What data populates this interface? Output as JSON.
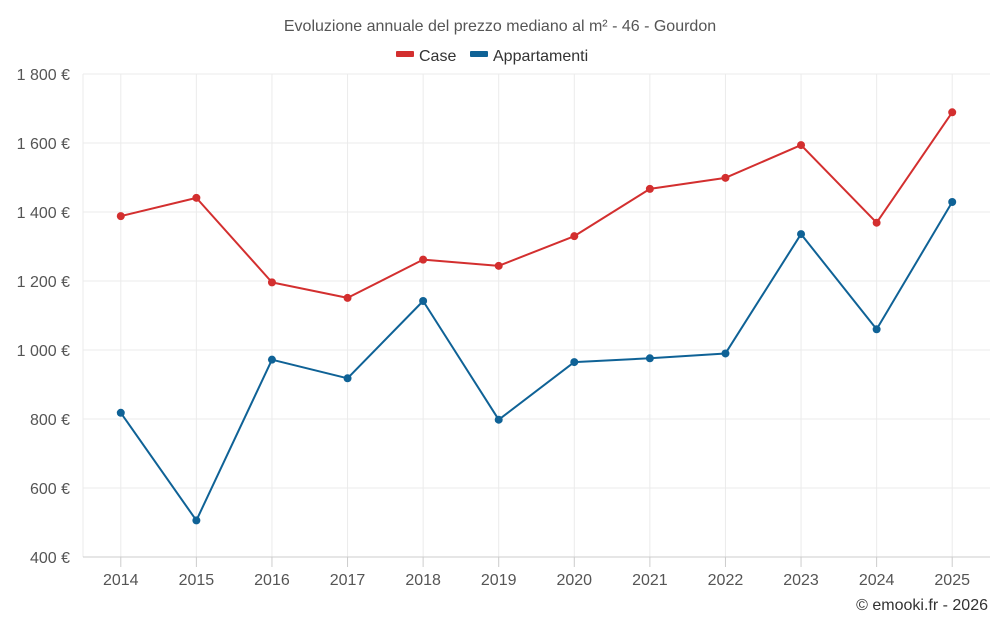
{
  "chart_data": {
    "type": "line",
    "title": "Evoluzione annuale del prezzo mediano al m² - 46 - Gourdon",
    "categories": [
      "2014",
      "2015",
      "2016",
      "2017",
      "2018",
      "2019",
      "2020",
      "2021",
      "2022",
      "2023",
      "2024",
      "2025"
    ],
    "series": [
      {
        "name": "Case",
        "color": "#d32f2f",
        "values": [
          1388,
          1441,
          1196,
          1151,
          1262,
          1244,
          1330,
          1467,
          1499,
          1594,
          1369,
          1689
        ]
      },
      {
        "name": "Appartamenti",
        "color": "#0f6296",
        "values": [
          818,
          506,
          972,
          918,
          1142,
          798,
          965,
          976,
          990,
          1336,
          1060,
          1429
        ]
      }
    ],
    "y_ticks": [
      400,
      600,
      800,
      1000,
      1200,
      1400,
      1600,
      1800
    ],
    "y_tick_labels": [
      "400 €",
      "600 €",
      "800 €",
      "1 000 €",
      "1 200 €",
      "1 400 €",
      "1 600 €",
      "1 800 €"
    ],
    "ylim": [
      400,
      1800
    ],
    "xlabel": "",
    "ylabel": "",
    "grid": true,
    "legend": "top-center"
  },
  "credit": "© emooki.fr - 2026"
}
